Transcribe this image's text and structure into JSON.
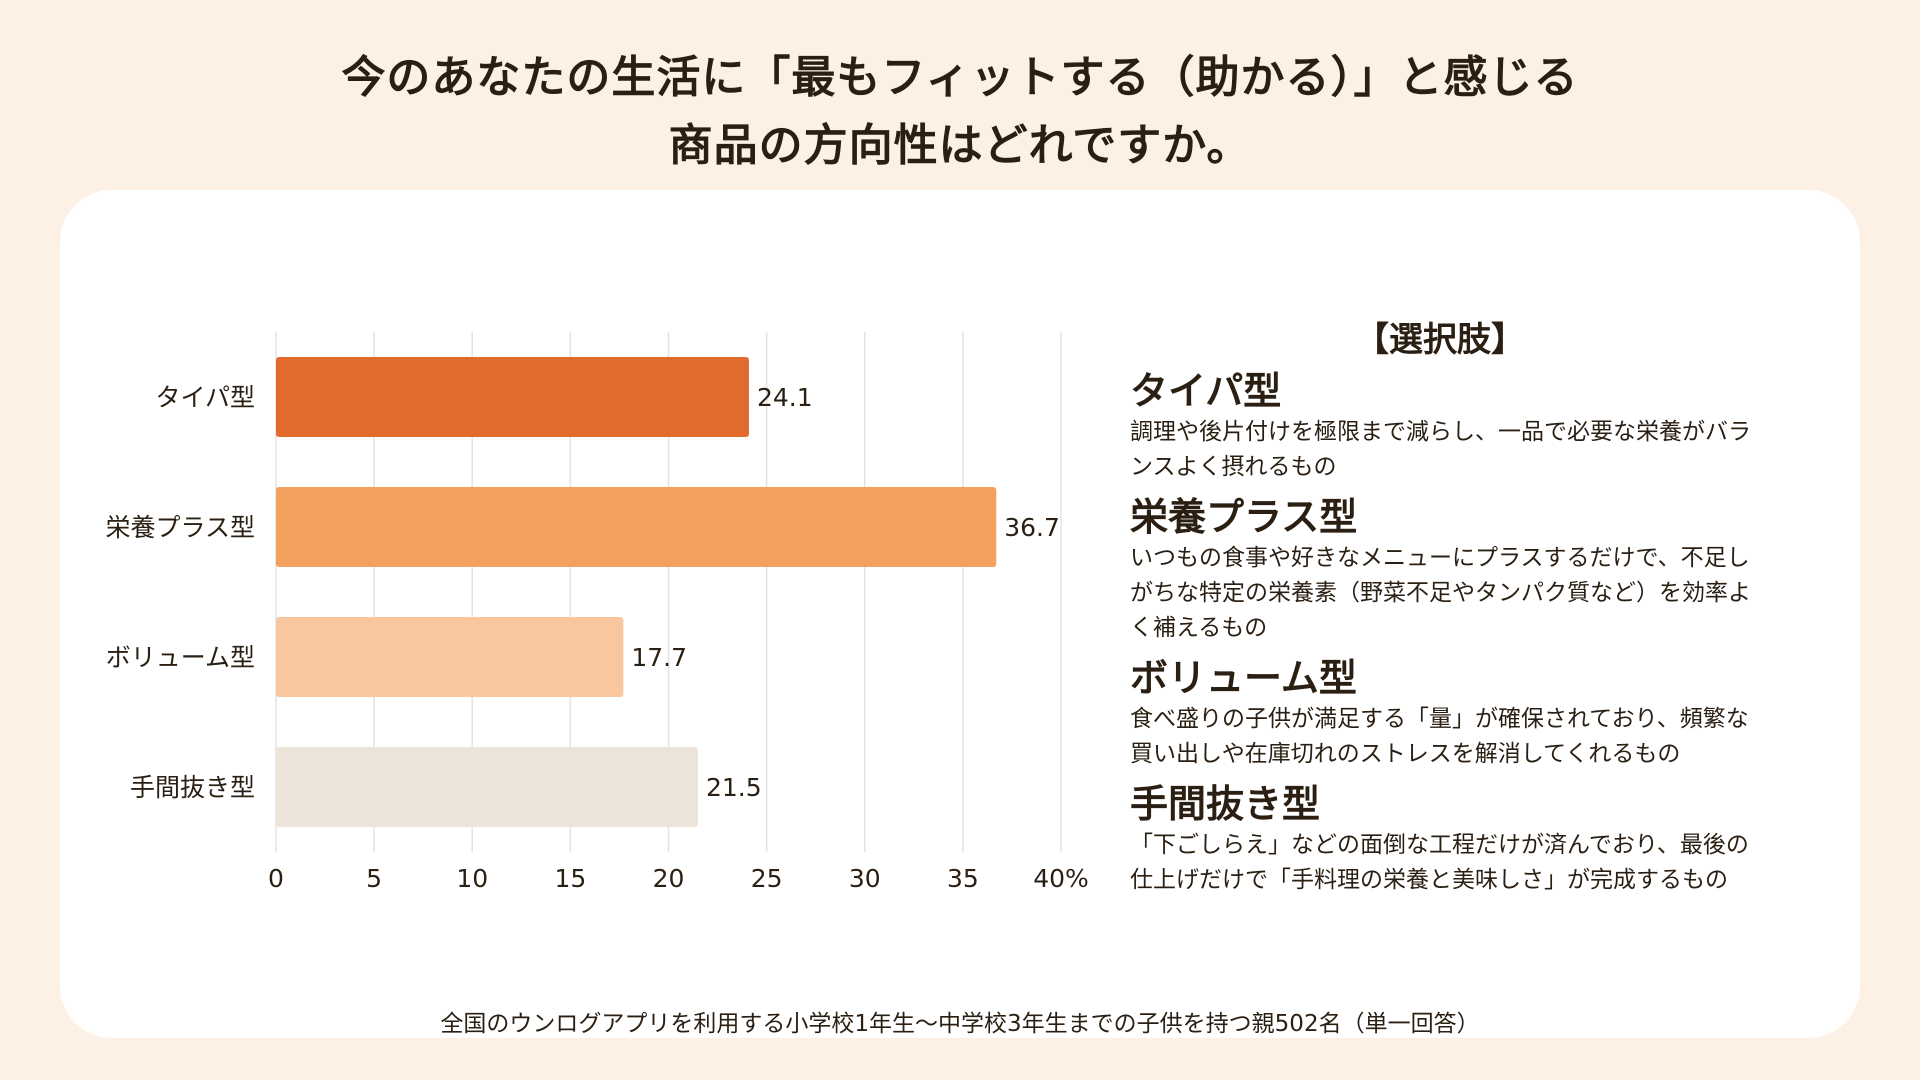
{
  "title": {
    "line1": "今のあなたの生活に「最もフィットする（助かる）」と感じる",
    "line2": "商品の方向性はどれですか。"
  },
  "chart_data": {
    "type": "bar",
    "orientation": "horizontal",
    "categories": [
      "タイパ型",
      "栄養プラス型",
      "ボリューム型",
      "手間抜き型"
    ],
    "values": [
      24.1,
      36.7,
      17.7,
      21.5
    ],
    "value_labels": [
      "24.1",
      "36.7",
      "17.7",
      "21.5"
    ],
    "colors": [
      "#E06B2C",
      "#F2A15F",
      "#F8C7A0",
      "#EDE4D9"
    ],
    "xlim": [
      0,
      40
    ],
    "xticks": [
      "0",
      "5",
      "10",
      "15",
      "20",
      "25",
      "30",
      "35",
      "40%"
    ],
    "grid": true
  },
  "legend": {
    "heading": "【選択肢】",
    "options": [
      {
        "name": "タイパ型",
        "desc_lines": [
          "調理や後片付けを極限まで減らし、一品で必要な栄養がバラ",
          "ンスよく摂れるもの"
        ]
      },
      {
        "name": "栄養プラス型",
        "desc_lines": [
          "いつもの食事や好きなメニューにプラスするだけで、不足し",
          "がちな特定の栄養素（野菜不足やタンパク質など）を効率よ",
          "く補えるもの"
        ]
      },
      {
        "name": "ボリューム型",
        "desc_lines": [
          "食べ盛りの子供が満足する「量」が確保されており、頻繁な",
          "買い出しや在庫切れのストレスを解消してくれるもの"
        ]
      },
      {
        "name": "手間抜き型",
        "desc_lines": [
          "「下ごしらえ」などの面倒な工程だけが済んでおり、最後の",
          "仕上げだけで「手料理の栄養と美味しさ」が完成するもの"
        ]
      }
    ]
  },
  "footnote": "全国のウンログアプリを利用する小学校1年生〜中学校3年生までの子供を持つ親502名（単一回答）"
}
